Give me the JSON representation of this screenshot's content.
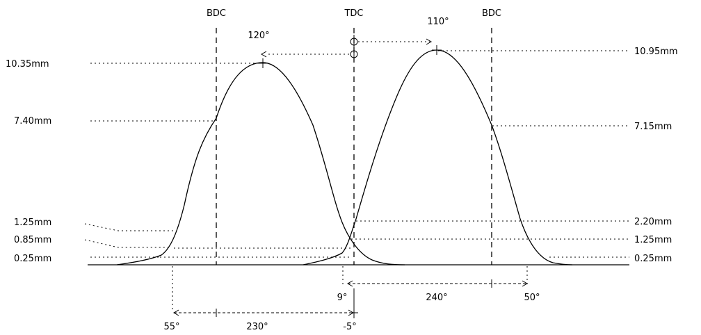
{
  "markers": {
    "bdc_left": "BDC",
    "tdc": "TDC",
    "bdc_right": "BDC"
  },
  "lift": {
    "left": [
      "10.35mm",
      "7.40mm",
      "1.25mm",
      "0.85mm",
      "0.25mm"
    ],
    "right": [
      "10.95mm",
      "7.15mm",
      "2.20mm",
      "1.25mm",
      "0.25mm"
    ]
  },
  "peak_angles": {
    "left": "120°",
    "right": "110°"
  },
  "durations": {
    "right_close": "9°",
    "right_duration": "240°",
    "right_open": "50°",
    "left_open": "55°",
    "left_duration": "230°",
    "left_close": "-5°"
  }
}
